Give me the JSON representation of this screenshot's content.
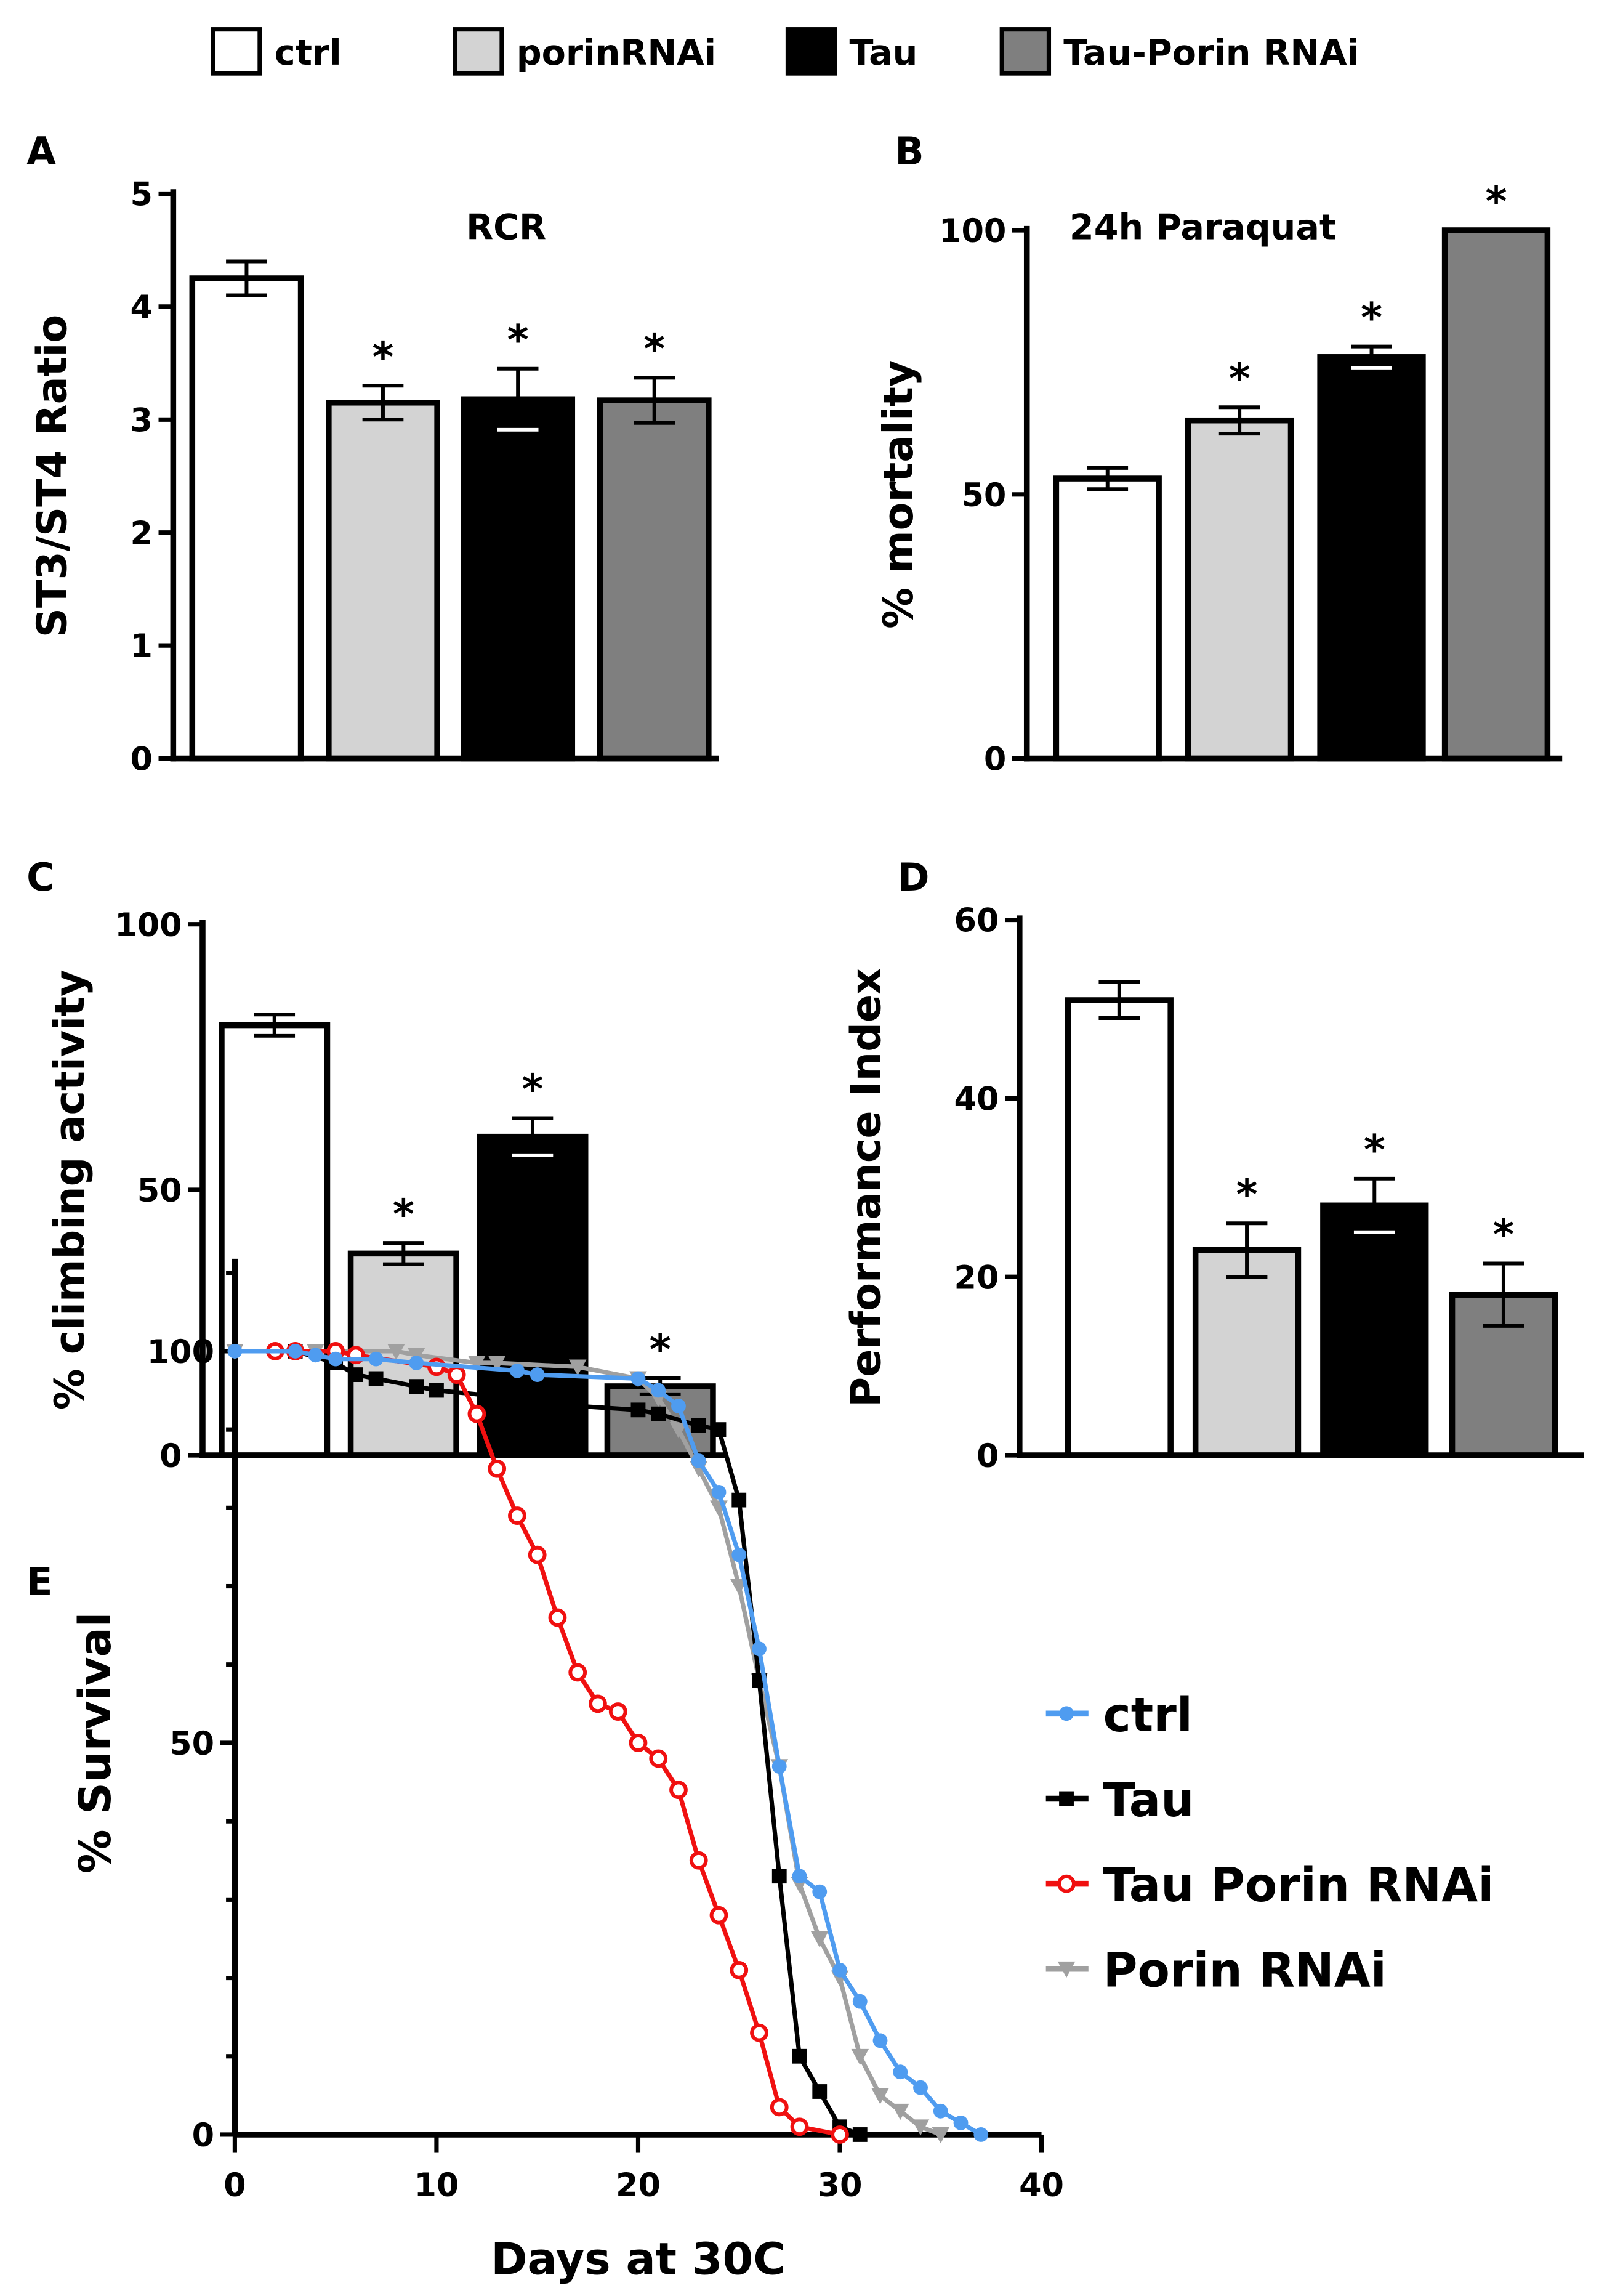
{
  "legend": {
    "items": [
      {
        "label": "ctrl",
        "color": "#ffffff"
      },
      {
        "label": "porinRNAi",
        "color": "#d3d3d3"
      },
      {
        "label": "Tau",
        "color": "#000000"
      },
      {
        "label": "Tau-Porin RNAi",
        "color": "#7f7f7f"
      }
    ]
  },
  "chart_data": [
    {
      "panel": "A",
      "type": "bar",
      "title": "RCR",
      "xlabel": "",
      "ylabel": "ST3/ST4 Ratio",
      "categories": [
        "ctrl",
        "porinRNAi",
        "Tau",
        "Tau-Porin RNAi"
      ],
      "values": [
        4.25,
        3.15,
        3.18,
        3.17
      ],
      "errors": [
        0.15,
        0.15,
        0.27,
        0.2
      ],
      "significance": [
        "",
        "*",
        "*",
        "*"
      ],
      "ylim": [
        0,
        5
      ],
      "yticks": [
        0,
        1,
        2,
        3,
        4,
        5
      ]
    },
    {
      "panel": "B",
      "type": "bar",
      "title": "24h Paraquat",
      "xlabel": "",
      "ylabel": "% mortality",
      "categories": [
        "ctrl",
        "porinRNAi",
        "Tau",
        "Tau-Porin RNAi"
      ],
      "values": [
        53,
        64,
        76,
        100
      ],
      "errors": [
        2,
        2.5,
        2,
        0
      ],
      "significance": [
        "",
        "*",
        "*",
        "*"
      ],
      "ylim": [
        0,
        100
      ],
      "yticks": [
        0,
        50,
        100
      ]
    },
    {
      "panel": "C",
      "type": "bar",
      "title": "",
      "xlabel": "",
      "ylabel": "% climbing activity",
      "categories": [
        "ctrl",
        "porinRNAi",
        "Tau",
        "Tau-Porin RNAi"
      ],
      "values": [
        81,
        38,
        60,
        13
      ],
      "errors": [
        2,
        2,
        3.5,
        1.5
      ],
      "significance": [
        "",
        "*",
        "*",
        "*"
      ],
      "ylim": [
        0,
        100
      ],
      "yticks": [
        0,
        50,
        100
      ]
    },
    {
      "panel": "D",
      "type": "bar",
      "title": "",
      "xlabel": "",
      "ylabel": "Performance Index",
      "categories": [
        "ctrl",
        "porinRNAi",
        "Tau",
        "Tau-Porin RNAi"
      ],
      "values": [
        51,
        23,
        28,
        18
      ],
      "errors": [
        2,
        3,
        3,
        3.5
      ],
      "significance": [
        "",
        "*",
        "*",
        "*"
      ],
      "ylim": [
        0,
        60
      ],
      "yticks": [
        0,
        20,
        40,
        60
      ]
    },
    {
      "panel": "E",
      "type": "line",
      "title": "",
      "xlabel": "Days at 30C",
      "ylabel": "% Survival",
      "xlim": [
        0,
        40
      ],
      "xticks": [
        0,
        10,
        20,
        30,
        40
      ],
      "ylim": [
        0,
        100
      ],
      "yticks": [
        0,
        50,
        100
      ],
      "legend_position": "right",
      "series": [
        {
          "name": "ctrl",
          "color": "#4f9cf0",
          "marker": "circle-filled",
          "points": [
            [
              0,
              100
            ],
            [
              3,
              100
            ],
            [
              4,
              99.5
            ],
            [
              5,
              99
            ],
            [
              7,
              99
            ],
            [
              9,
              98.5
            ],
            [
              14,
              97.5
            ],
            [
              15,
              97
            ],
            [
              20,
              96.5
            ],
            [
              21,
              95
            ],
            [
              22,
              93
            ],
            [
              23,
              86
            ],
            [
              24,
              82
            ],
            [
              25,
              74
            ],
            [
              26,
              62
            ],
            [
              27,
              47
            ],
            [
              28,
              33
            ],
            [
              29,
              31
            ],
            [
              30,
              21
            ],
            [
              31,
              17
            ],
            [
              32,
              12
            ],
            [
              33,
              8
            ],
            [
              34,
              6
            ],
            [
              35,
              3
            ],
            [
              36,
              1.5
            ],
            [
              37,
              0
            ]
          ]
        },
        {
          "name": "Tau",
          "color": "#000000",
          "marker": "square",
          "points": [
            [
              3,
              100
            ],
            [
              5,
              98.5
            ],
            [
              6,
              97
            ],
            [
              7,
              96.5
            ],
            [
              9,
              95.5
            ],
            [
              10,
              95
            ],
            [
              16,
              93.5
            ],
            [
              17,
              93
            ],
            [
              20,
              92.5
            ],
            [
              21,
              92
            ],
            [
              23,
              90.5
            ],
            [
              24,
              90
            ],
            [
              25,
              81
            ],
            [
              26,
              58
            ],
            [
              27,
              33
            ],
            [
              28,
              10
            ],
            [
              29,
              5.5
            ],
            [
              30,
              1
            ],
            [
              31,
              0
            ]
          ]
        },
        {
          "name": "Tau Porin RNAi",
          "color": "#f01010",
          "marker": "circle-open",
          "points": [
            [
              2,
              100
            ],
            [
              3,
              100
            ],
            [
              5,
              100
            ],
            [
              6,
              99.5
            ],
            [
              10,
              98
            ],
            [
              11,
              97
            ],
            [
              12,
              92
            ],
            [
              13,
              85
            ],
            [
              14,
              79
            ],
            [
              15,
              74
            ],
            [
              16,
              66
            ],
            [
              17,
              59
            ],
            [
              18,
              55
            ],
            [
              19,
              54
            ],
            [
              20,
              50
            ],
            [
              21,
              48
            ],
            [
              22,
              44
            ],
            [
              23,
              35
            ],
            [
              24,
              28
            ],
            [
              25,
              21
            ],
            [
              26,
              13
            ],
            [
              27,
              3.5
            ],
            [
              28,
              1
            ],
            [
              30,
              0
            ]
          ]
        },
        {
          "name": "Porin RNAi",
          "color": "#a0a0a0",
          "marker": "triangle-down",
          "points": [
            [
              0,
              100
            ],
            [
              4,
              100
            ],
            [
              8,
              100
            ],
            [
              9,
              99.5
            ],
            [
              12,
              98.5
            ],
            [
              13,
              98.5
            ],
            [
              17,
              98
            ],
            [
              20,
              96.5
            ],
            [
              21,
              94
            ],
            [
              22,
              90
            ],
            [
              23,
              85
            ],
            [
              24,
              80
            ],
            [
              25,
              70
            ],
            [
              26,
              58
            ],
            [
              27,
              47
            ],
            [
              28,
              32
            ],
            [
              29,
              25
            ],
            [
              30,
              20
            ],
            [
              31,
              10
            ],
            [
              32,
              5
            ],
            [
              33,
              3
            ],
            [
              34,
              1
            ],
            [
              35,
              0
            ]
          ]
        }
      ]
    }
  ]
}
